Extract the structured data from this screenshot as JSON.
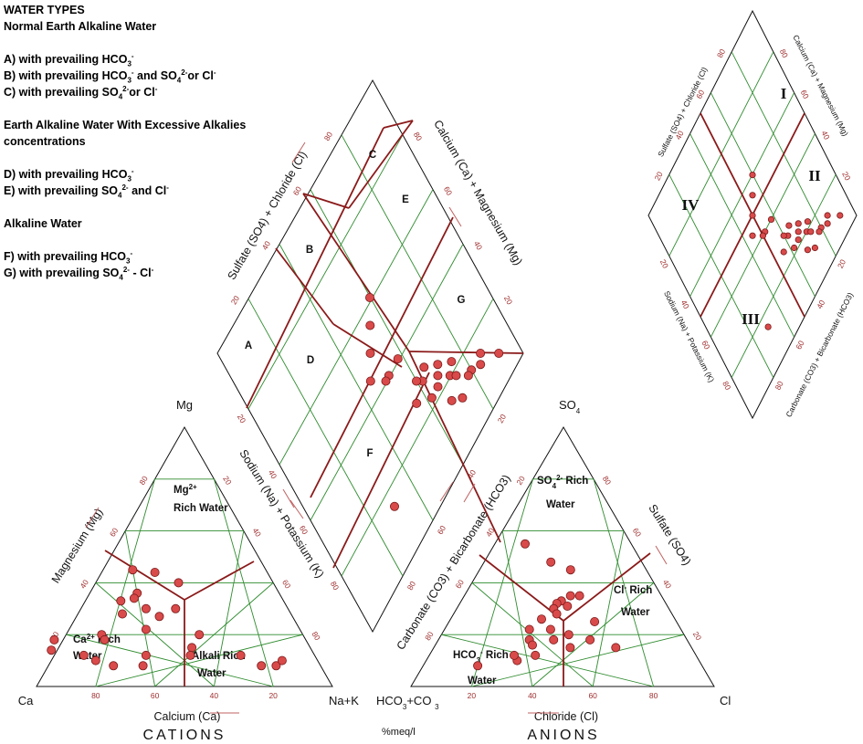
{
  "legend": {
    "title": "WATER TYPES",
    "groups": [
      {
        "heading": "Normal Earth Alkaline Water",
        "items": [
          {
            "letter": "A)",
            "pre": "with prevailing HCO",
            "sub": "3",
            "sup": "-",
            "post": ""
          },
          {
            "letter": "B)",
            "pre": "with prevailing HCO",
            "sub": "3",
            "sup": "-",
            "post": " and SO",
            "sub2": "4",
            "sup2": "2-",
            "post2": "or Cl",
            "sup3": "-"
          },
          {
            "letter": "C)",
            "pre": "with prevailing SO",
            "sub": "4",
            "sup": "2-",
            "post": "or Cl",
            "sup2": "-"
          }
        ]
      },
      {
        "heading": "Earth Alkaline Water With Excessive Alkalies concentrations",
        "items": [
          {
            "letter": "D)",
            "pre": "with prevailing HCO",
            "sub": "3",
            "sup": "-",
            "post": ""
          },
          {
            "letter": "E)",
            "pre": "with prevailing SO",
            "sub": "4",
            "sup": "2-",
            "post": " and Cl",
            "sup2": "-"
          }
        ]
      },
      {
        "heading": "Alkaline Water",
        "items": [
          {
            "letter": "F)",
            "pre": "with prevailing HCO",
            "sub": "3",
            "sup": "-",
            "post": ""
          },
          {
            "letter": "G)",
            "pre": "with prevailing SO",
            "sub": "4",
            "sup": "2-",
            "post": " - Cl",
            "sup2": "-"
          }
        ]
      }
    ]
  },
  "cations": {
    "title": "CATIONS",
    "corners": {
      "top": "Mg",
      "left": "Ca",
      "right": "Na+K"
    },
    "axis_left": "Magnesium (Mg)",
    "axis_right": "Sodium (Na) + Potassium (K)",
    "axis_bottom": "Calcium (Ca)",
    "ticks": [
      "20",
      "40",
      "60",
      "80"
    ],
    "zones": {
      "mg_rich": [
        "Mg",
        "2+",
        "Rich Water"
      ],
      "ca_rich": [
        "Ca",
        "2+",
        " Rich",
        "Water"
      ],
      "alkali_rich": [
        "Alkali Rich",
        "Water"
      ]
    }
  },
  "anions": {
    "title": "ANIONS",
    "corners": {
      "top": "SO",
      "top_sub": "4",
      "left": "HCO",
      "left_sub": "3",
      "left_post": "+CO ",
      "left_post_sub": "3",
      "right": "Cl"
    },
    "axis_left": "Carbonate (CO3) + Bicarbonate (HCO3)",
    "axis_right": "Sulfate (SO4)",
    "axis_bottom": "Chloride (Cl)",
    "ticks": [
      "20",
      "40",
      "60",
      "80"
    ],
    "zones": {
      "so4_rich": [
        "SO",
        "4",
        "2-",
        " Rich",
        "Water"
      ],
      "cl_rich": [
        "Cl",
        "-",
        " Rich",
        "Water"
      ],
      "hco3_rich": [
        "HCO",
        "3",
        "-",
        " Rich",
        "Water"
      ]
    }
  },
  "center_label": "%meq/l",
  "diamond": {
    "axis_ul": "Sulfate (SO4) + Chloride (Cl)",
    "axis_ur": "Calcium (Ca) + Magnesium (Mg)",
    "ticks": [
      "20",
      "40",
      "60",
      "80"
    ],
    "zones": [
      "A",
      "B",
      "C",
      "D",
      "E",
      "F",
      "G"
    ]
  },
  "small_diamond": {
    "axis_ul": "Sulfate (SO4) + Chloride (Cl)",
    "axis_ur": "Calcium (Ca) + Magnesium (Mg)",
    "axis_ll": "Sodium (Na) + Potassium (K)",
    "axis_lr": "Carbonate (CO3) + Bicarbonate (HCO3)",
    "ticks": [
      "20",
      "40",
      "60",
      "80"
    ],
    "zones": [
      "I",
      "II",
      "III",
      "IV"
    ]
  },
  "colors": {
    "grid": "#2e8b2e",
    "boundary": "#8b1a1a",
    "point": "#d94a4a",
    "tick": "#a03030"
  },
  "samples": {
    "cations_ca_mg_pct": [
      [
        45,
        45
      ],
      [
        38,
        44
      ],
      [
        32,
        40
      ],
      [
        48,
        36
      ],
      [
        50,
        34
      ],
      [
        55,
        33
      ],
      [
        57,
        28
      ],
      [
        45,
        27
      ],
      [
        68,
        20
      ],
      [
        68,
        18
      ],
      [
        40,
        15
      ],
      [
        42,
        12
      ],
      [
        85,
        18
      ],
      [
        88,
        14
      ],
      [
        78,
        12
      ],
      [
        75,
        10
      ],
      [
        70,
        8
      ],
      [
        60,
        8
      ],
      [
        57,
        12
      ],
      [
        25,
        12
      ],
      [
        20,
        8
      ],
      [
        15,
        8
      ],
      [
        12,
        10
      ],
      [
        35,
        20
      ],
      [
        38,
        30
      ],
      [
        48,
        30
      ],
      [
        52,
        22
      ]
    ],
    "anions_so4_cl_pct": [
      [
        35,
        38
      ],
      [
        35,
        35
      ],
      [
        33,
        33
      ],
      [
        31,
        36
      ],
      [
        32,
        32
      ],
      [
        30,
        32
      ],
      [
        28,
        34
      ],
      [
        26,
        30
      ],
      [
        22,
        28
      ],
      [
        18,
        30
      ],
      [
        16,
        32
      ],
      [
        20,
        42
      ],
      [
        18,
        38
      ],
      [
        15,
        45
      ],
      [
        22,
        35
      ],
      [
        25,
        48
      ],
      [
        10,
        30
      ],
      [
        8,
        18
      ],
      [
        12,
        35
      ],
      [
        12,
        28
      ],
      [
        18,
        50
      ],
      [
        55,
        10
      ],
      [
        45,
        30
      ],
      [
        48,
        22
      ],
      [
        15,
        60
      ]
    ],
    "diamond_so4cl_camg_pct": [
      [
        92,
        8
      ],
      [
        86,
        14
      ],
      [
        84,
        12
      ],
      [
        80,
        14
      ],
      [
        78,
        14
      ],
      [
        72,
        20
      ],
      [
        74,
        18
      ],
      [
        68,
        24
      ],
      [
        66,
        22
      ],
      [
        70,
        26
      ],
      [
        75,
        22
      ],
      [
        65,
        30
      ],
      [
        62,
        28
      ],
      [
        60,
        30
      ],
      [
        52,
        40
      ],
      [
        72,
        12
      ],
      [
        68,
        15
      ],
      [
        62,
        22
      ],
      [
        56,
        26
      ],
      [
        30,
        15
      ],
      [
        45,
        45
      ],
      [
        50,
        50
      ],
      [
        55,
        55
      ],
      [
        60,
        60
      ],
      [
        50,
        40
      ],
      [
        58,
        40
      ]
    ],
    "small_diamond_so4cl_camg_pct": [
      [
        92,
        8
      ],
      [
        86,
        14
      ],
      [
        84,
        12
      ],
      [
        80,
        14
      ],
      [
        78,
        14
      ],
      [
        72,
        20
      ],
      [
        74,
        18
      ],
      [
        68,
        24
      ],
      [
        66,
        22
      ],
      [
        70,
        26
      ],
      [
        75,
        22
      ],
      [
        65,
        30
      ],
      [
        62,
        28
      ],
      [
        60,
        30
      ],
      [
        52,
        40
      ],
      [
        72,
        12
      ],
      [
        68,
        15
      ],
      [
        62,
        22
      ],
      [
        56,
        26
      ],
      [
        30,
        15
      ],
      [
        45,
        45
      ],
      [
        50,
        50
      ],
      [
        55,
        55
      ],
      [
        60,
        60
      ],
      [
        50,
        40
      ],
      [
        58,
        40
      ]
    ]
  }
}
